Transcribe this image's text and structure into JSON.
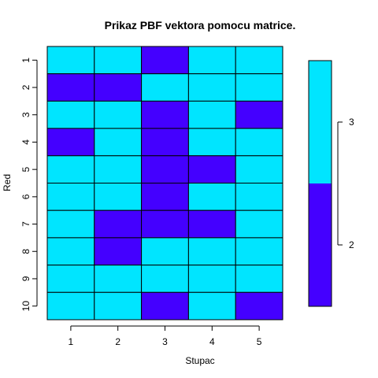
{
  "chart_data": {
    "type": "heatmap",
    "title": "Prikaz PBF vektora pomocu matrice.",
    "xlabel": "Stupac",
    "ylabel": "Red",
    "x_categories": [
      "1",
      "2",
      "3",
      "4",
      "5"
    ],
    "y_categories": [
      "1",
      "2",
      "3",
      "4",
      "5",
      "6",
      "7",
      "8",
      "9",
      "10"
    ],
    "values": [
      [
        3,
        3,
        2,
        3,
        3
      ],
      [
        2,
        2,
        3,
        3,
        3
      ],
      [
        3,
        3,
        2,
        3,
        2
      ],
      [
        2,
        3,
        2,
        3,
        3
      ],
      [
        3,
        3,
        2,
        2,
        3
      ],
      [
        3,
        3,
        2,
        3,
        3
      ],
      [
        3,
        2,
        2,
        2,
        3
      ],
      [
        3,
        2,
        3,
        3,
        3
      ],
      [
        3,
        3,
        3,
        3,
        3
      ],
      [
        3,
        3,
        2,
        3,
        2
      ]
    ],
    "legend": {
      "placement": "right",
      "levels": [
        {
          "label": "2",
          "value": 2,
          "color": "#4400ff"
        },
        {
          "label": "3",
          "value": 3,
          "color": "#00e5ff"
        }
      ]
    }
  }
}
